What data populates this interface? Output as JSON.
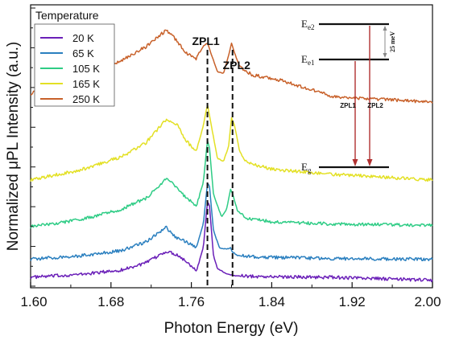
{
  "chart_data": {
    "type": "line",
    "title": "",
    "xlabel": "Photon Energy (eV)",
    "ylabel": "Normalized μPL Intensity (a.u.)",
    "xlim": [
      1.6,
      2.0
    ],
    "x_ticks": [
      "1.60",
      "1.68",
      "1.76",
      "1.84",
      "1.92",
      "2.00"
    ],
    "y_ticks_labeled": false,
    "legend": {
      "title": "Temperature",
      "placement": "top-left",
      "entries": [
        "20 K",
        "65 K",
        "105 K",
        "165 K",
        "250 K"
      ]
    },
    "series": [
      {
        "name": "20 K",
        "color": "#6a1fb8",
        "offset": 0.0,
        "x": [
          1.6,
          1.65,
          1.69,
          1.715,
          1.735,
          1.745,
          1.755,
          1.765,
          1.772,
          1.776,
          1.778,
          1.782,
          1.786,
          1.795,
          1.804,
          1.83,
          1.9,
          2.0
        ],
        "y": [
          0.0,
          0.04,
          0.1,
          0.2,
          0.36,
          0.32,
          0.22,
          0.1,
          0.42,
          1.05,
          1.0,
          0.3,
          0.12,
          0.05,
          0.02,
          0.01,
          0.0,
          -0.04
        ]
      },
      {
        "name": "65 K",
        "color": "#2a7fbf",
        "offset": 0.25,
        "x": [
          1.6,
          1.65,
          1.69,
          1.715,
          1.735,
          1.745,
          1.755,
          1.765,
          1.772,
          1.776,
          1.778,
          1.782,
          1.788,
          1.795,
          1.799,
          1.801,
          1.806,
          1.83,
          1.9,
          2.0
        ],
        "y": [
          0.0,
          0.05,
          0.12,
          0.24,
          0.44,
          0.3,
          0.24,
          0.16,
          0.5,
          1.05,
          1.02,
          0.4,
          0.16,
          0.14,
          0.16,
          0.1,
          0.05,
          0.03,
          0.01,
          0.0
        ]
      },
      {
        "name": "105 K",
        "color": "#2ecc85",
        "offset": 0.7,
        "x": [
          1.6,
          1.65,
          1.69,
          1.715,
          1.735,
          1.745,
          1.755,
          1.765,
          1.772,
          1.776,
          1.778,
          1.782,
          1.79,
          1.795,
          1.799,
          1.801,
          1.806,
          1.815,
          1.84,
          1.9,
          2.0
        ],
        "y": [
          0.0,
          0.1,
          0.24,
          0.4,
          0.66,
          0.56,
          0.4,
          0.3,
          0.62,
          1.2,
          1.1,
          0.45,
          0.14,
          0.24,
          0.52,
          0.46,
          0.22,
          0.12,
          0.07,
          0.04,
          0.02
        ]
      },
      {
        "name": "165 K",
        "color": "#e3e024",
        "offset": 1.35,
        "x": [
          1.6,
          1.65,
          1.69,
          1.715,
          1.735,
          1.745,
          1.755,
          1.765,
          1.772,
          1.776,
          1.779,
          1.786,
          1.792,
          1.797,
          1.8,
          1.803,
          1.808,
          1.815,
          1.84,
          1.9,
          2.0
        ],
        "y": [
          0.0,
          0.14,
          0.32,
          0.52,
          0.84,
          0.78,
          0.54,
          0.4,
          0.76,
          1.05,
          0.82,
          0.3,
          0.26,
          0.46,
          0.86,
          0.76,
          0.4,
          0.24,
          0.15,
          0.08,
          0.0
        ]
      },
      {
        "name": "250 K",
        "color": "#c8612a",
        "offset": 2.55,
        "x": [
          1.6,
          1.65,
          1.69,
          1.715,
          1.735,
          1.745,
          1.755,
          1.765,
          1.772,
          1.776,
          1.779,
          1.786,
          1.792,
          1.797,
          1.8,
          1.803,
          1.808,
          1.82,
          1.85,
          1.9,
          2.0
        ],
        "y": [
          0.0,
          0.22,
          0.46,
          0.65,
          0.88,
          0.74,
          0.56,
          0.48,
          0.66,
          0.7,
          0.58,
          0.3,
          0.28,
          0.52,
          0.7,
          0.56,
          0.38,
          0.26,
          0.18,
          -0.04,
          -0.12
        ]
      }
    ],
    "reference_lines": [
      {
        "label": "ZPL1",
        "x": 1.776,
        "style": "dashed"
      },
      {
        "label": "ZPL2",
        "x": 1.801,
        "style": "dashed"
      }
    ],
    "inset_diagram": {
      "type": "energy-level",
      "levels": [
        "Ee2",
        "Ee1",
        "Eg"
      ],
      "transitions": [
        "ZPL1",
        "ZPL2"
      ],
      "spacing_label": "25 meV",
      "arrow_color": "#b03030"
    }
  }
}
